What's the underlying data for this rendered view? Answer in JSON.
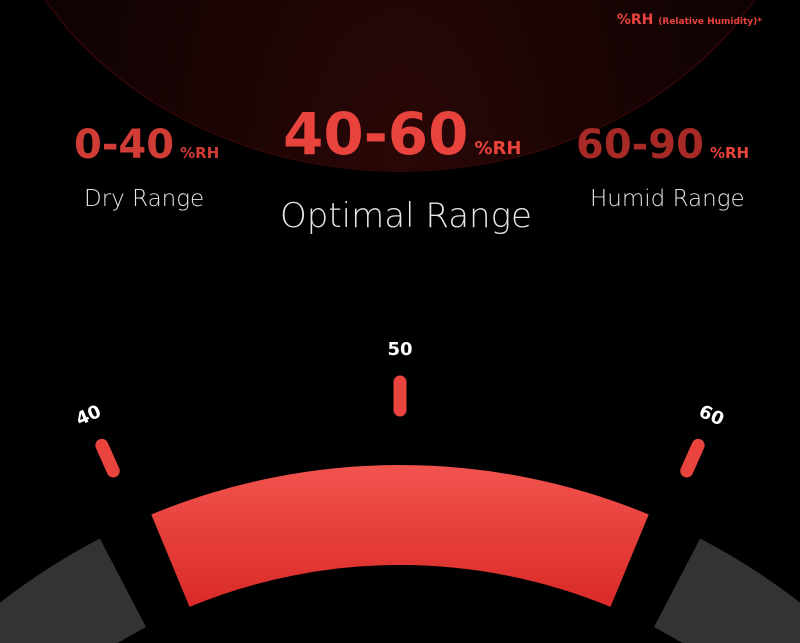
{
  "note": {
    "unit": "%RH",
    "text": "(Relative Humidity)*"
  },
  "ranges": [
    {
      "value": "0-40",
      "unit": "%RH",
      "label": "Dry Range"
    },
    {
      "value": "40-60",
      "unit": "%RH",
      "label": "Optimal Range"
    },
    {
      "value": "60-90",
      "unit": "%RH",
      "label": "Humid Range"
    }
  ],
  "gauge": {
    "ticks": [
      "40",
      "50",
      "60"
    ],
    "highlight_min": 40,
    "highlight_max": 60
  },
  "colors": {
    "accent": "#e8433d",
    "band_top": "#f2544f",
    "band_bottom": "#d92a27",
    "inactive": "#333333"
  }
}
